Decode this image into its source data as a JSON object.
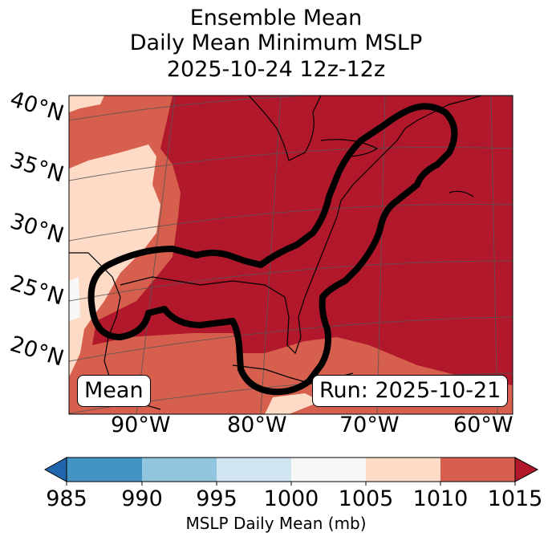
{
  "title": {
    "line1": "Ensemble Mean",
    "line2": "Daily Mean Minimum MSLP",
    "line3": "2025-10-24 12z-12z"
  },
  "map": {
    "lat_labels": [
      "40°N",
      "35°N",
      "30°N",
      "25°N",
      "20°N"
    ],
    "lon_labels": [
      "90°W",
      "80°W",
      "70°W",
      "60°W"
    ],
    "legend_box_left": "Mean",
    "legend_box_right": "Run: 2025-10-21",
    "projection": "conic",
    "contour_color": "#000000"
  },
  "colorbar": {
    "label": "MSLP Daily Mean (mb)",
    "ticks": [
      "985",
      "990",
      "995",
      "1000",
      "1005",
      "1010",
      "1015"
    ],
    "colors": [
      "#2166ac",
      "#4393c3",
      "#92c5de",
      "#d1e5f0",
      "#f7f7f7",
      "#fddbc7",
      "#d6604d",
      "#b2182b"
    ],
    "extend": "both"
  }
}
